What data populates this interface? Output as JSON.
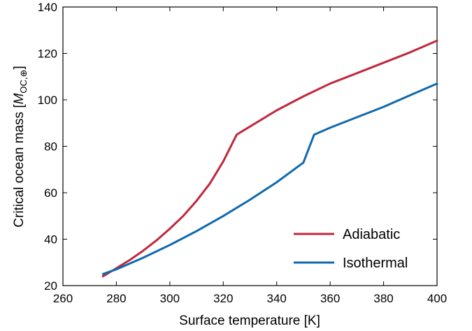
{
  "chart_data": {
    "type": "line",
    "xlabel": "Surface temperature  [K]",
    "ylabel": {
      "prefix": "Critical ocean mass [",
      "symbol": "M",
      "subscript": "OC,⊕",
      "suffix": "]"
    },
    "xlim": [
      260,
      400
    ],
    "ylim": [
      20,
      140
    ],
    "xticks": [
      "260",
      "280",
      "300",
      "320",
      "340",
      "360",
      "380",
      "400"
    ],
    "yticks": [
      "20",
      "40",
      "60",
      "80",
      "100",
      "120",
      "140"
    ],
    "grid": false,
    "legend_position": "bottom-right",
    "series": [
      {
        "name": "Adiabatic",
        "color": "#c0283c",
        "x": [
          275,
          280,
          285,
          290,
          295,
          300,
          305,
          310,
          315,
          320,
          325,
          330,
          340,
          350,
          360,
          370,
          380,
          390,
          400
        ],
        "y": [
          24,
          27.5,
          31,
          35,
          39.5,
          44.5,
          50,
          56.5,
          64,
          73.5,
          85,
          88.5,
          95.5,
          101.5,
          107,
          111.5,
          116,
          120.5,
          125.5
        ]
      },
      {
        "name": "Isothermal",
        "color": "#0f69ae",
        "x": [
          275,
          280,
          290,
          300,
          310,
          320,
          330,
          340,
          350,
          354,
          360,
          370,
          380,
          390,
          400
        ],
        "y": [
          25,
          27,
          32,
          37.5,
          43.5,
          50,
          57,
          64.5,
          73,
          85,
          88,
          92.5,
          97,
          102,
          107
        ]
      }
    ]
  }
}
